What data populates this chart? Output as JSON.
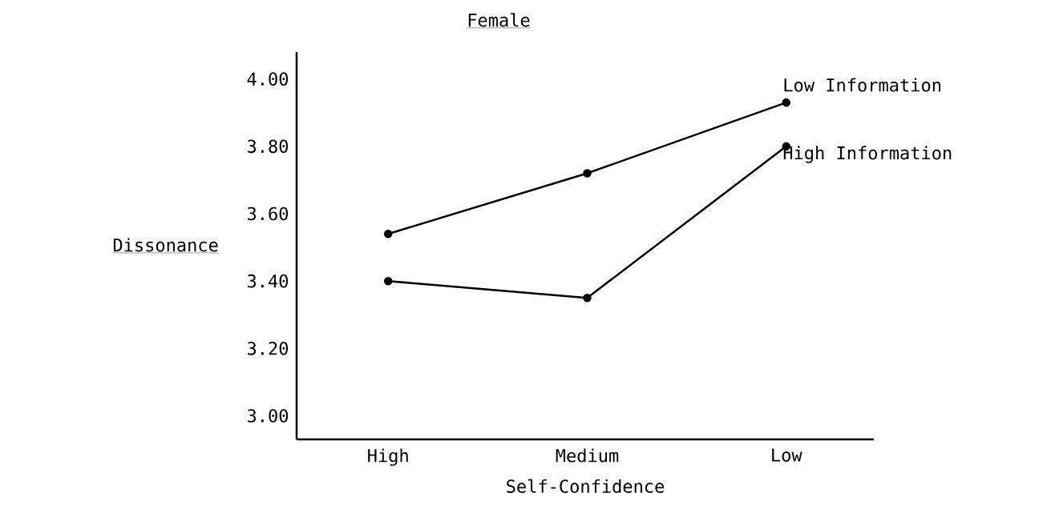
{
  "chart_data": {
    "type": "line",
    "title": "Female",
    "xlabel": "Self-Confidence",
    "ylabel": "Dissonance",
    "categories": [
      "High",
      "Medium",
      "Low"
    ],
    "series": [
      {
        "name": "Low Information",
        "color": "#000000",
        "values": [
          3.54,
          3.72,
          3.93
        ]
      },
      {
        "name": "High Information",
        "color": "#000000",
        "values": [
          3.4,
          3.35,
          3.8
        ]
      }
    ],
    "ylim": [
      2.93,
      4.08
    ],
    "yticks": [
      {
        "value": 3,
        "label": "3.00"
      },
      {
        "value": 3.2,
        "label": "3.20"
      },
      {
        "value": 3.4,
        "label": "3.40"
      },
      {
        "value": 3.6,
        "label": "3.60"
      },
      {
        "value": 3.8,
        "label": "3.80"
      },
      {
        "value": 4,
        "label": "4.00"
      }
    ],
    "grid": false,
    "legend": false,
    "marker": "circle",
    "line_style": "solid"
  }
}
